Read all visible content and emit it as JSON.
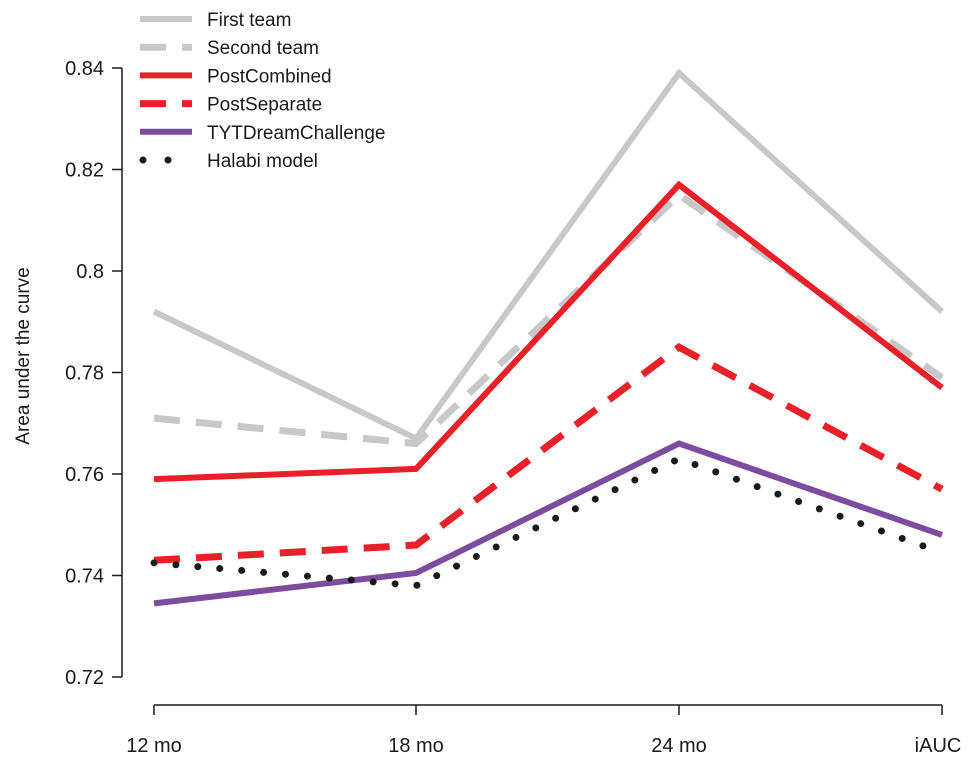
{
  "chart_data": {
    "type": "line",
    "ylabel": "Area under the curve",
    "categories": [
      "12 mo",
      "18 mo",
      "24 mo",
      "iAUC"
    ],
    "yticks": [
      "0.72",
      "0.74",
      "0.76",
      "0.78",
      "0.8",
      "0.82",
      "0.84"
    ],
    "ylim": [
      0.72,
      0.84
    ],
    "grid": false,
    "legend_position": "top-left",
    "series": [
      {
        "name": "First team",
        "values": [
          0.792,
          0.767,
          0.839,
          0.792
        ],
        "color": "#c8c8c8",
        "style": "solid"
      },
      {
        "name": "Second team",
        "values": [
          0.771,
          0.766,
          0.815,
          0.779
        ],
        "color": "#c8c8c8",
        "style": "dashed"
      },
      {
        "name": "PostCombined",
        "values": [
          0.759,
          0.761,
          0.817,
          0.777
        ],
        "color": "#e8202a",
        "style": "solid"
      },
      {
        "name": "PostSeparate",
        "values": [
          0.743,
          0.746,
          0.785,
          0.757
        ],
        "color": "#e8202a",
        "style": "dashed"
      },
      {
        "name": "TYTDreamChallenge",
        "values": [
          0.7345,
          0.7405,
          0.766,
          0.748
        ],
        "color": "#7d4c9e",
        "style": "solid"
      },
      {
        "name": "Halabi model",
        "values": [
          0.7425,
          0.738,
          0.763,
          0.7445
        ],
        "color": "#1a1a1a",
        "style": "dotted"
      }
    ]
  }
}
